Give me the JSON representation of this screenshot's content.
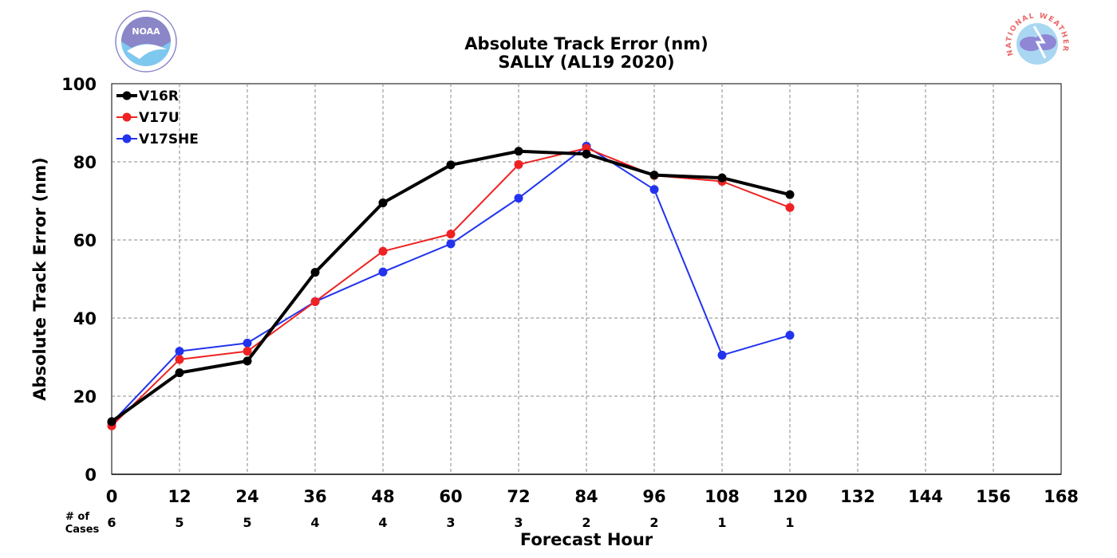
{
  "logos": {
    "left": {
      "text": "NOAA",
      "colors": {
        "top": "#8a86c8",
        "bottom": "#7ec8ef",
        "ring": "#8a86c8"
      }
    },
    "right": {
      "text": "NATIONAL WEATHER SERVICE",
      "colors": {
        "ring_text": "#e86a6a",
        "disc": "#a9d7f2",
        "cloud": "#8f86d6"
      }
    }
  },
  "chart_data": {
    "type": "line",
    "title": "Absolute Track Error (nm)",
    "subtitle": "SALLY (AL19 2020)",
    "xlabel": "Forecast Hour",
    "ylabel": "Absolute Track Error (nm)",
    "xlim": [
      0,
      168
    ],
    "ylim": [
      0,
      100
    ],
    "x_ticks": [
      0,
      12,
      24,
      36,
      48,
      60,
      72,
      84,
      96,
      108,
      120,
      132,
      144,
      156,
      168
    ],
    "y_ticks": [
      0,
      20,
      40,
      60,
      80,
      100
    ],
    "grid": true,
    "legend_position": "top-left",
    "cases_label": [
      "# of",
      "Cases"
    ],
    "cases": [
      {
        "x": 0,
        "n": "6"
      },
      {
        "x": 12,
        "n": "5"
      },
      {
        "x": 24,
        "n": "5"
      },
      {
        "x": 36,
        "n": "4"
      },
      {
        "x": 48,
        "n": "4"
      },
      {
        "x": 60,
        "n": "3"
      },
      {
        "x": 72,
        "n": "3"
      },
      {
        "x": 84,
        "n": "2"
      },
      {
        "x": 96,
        "n": "2"
      },
      {
        "x": 108,
        "n": "1"
      },
      {
        "x": 120,
        "n": "1"
      }
    ],
    "series": [
      {
        "name": "V16R",
        "color": "#000000",
        "bold": true,
        "x": [
          0,
          12,
          24,
          36,
          48,
          60,
          72,
          84,
          96,
          108,
          120
        ],
        "y": [
          13.5,
          26.0,
          29.0,
          51.7,
          69.5,
          79.2,
          82.7,
          82.0,
          76.6,
          75.9,
          71.6
        ]
      },
      {
        "name": "V17U",
        "color": "#ee2222",
        "bold": false,
        "x": [
          0,
          12,
          24,
          36,
          48,
          60,
          72,
          84,
          96,
          108,
          120
        ],
        "y": [
          12.4,
          29.4,
          31.5,
          44.2,
          57.1,
          61.5,
          79.3,
          83.5,
          76.5,
          75.0,
          68.3
        ]
      },
      {
        "name": "V17SHE",
        "color": "#2233ee",
        "bold": false,
        "x": [
          0,
          12,
          24,
          36,
          48,
          60,
          72,
          84,
          96,
          108,
          120
        ],
        "y": [
          13.2,
          31.5,
          33.6,
          44.2,
          51.8,
          59.0,
          70.7,
          84.0,
          72.9,
          30.5,
          35.6
        ]
      }
    ]
  }
}
